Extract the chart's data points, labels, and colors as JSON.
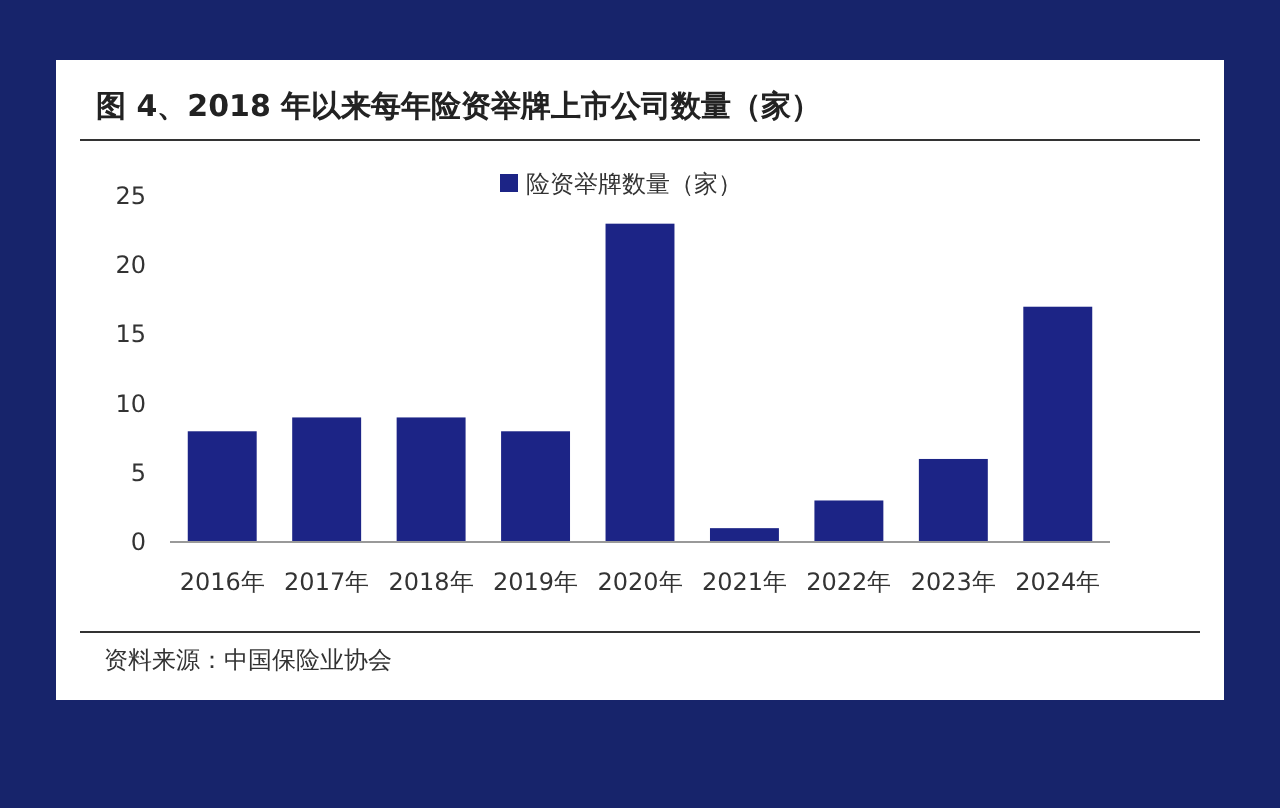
{
  "chart_data": {
    "type": "bar",
    "title": "图 4、2018 年以来每年险资举牌上市公司数量（家）",
    "categories": [
      "2016年",
      "2017年",
      "2018年",
      "2019年",
      "2020年",
      "2021年",
      "2022年",
      "2023年",
      "2024年"
    ],
    "series": [
      {
        "name": "险资举牌数量（家）",
        "color": "#1c2486",
        "values": [
          8,
          9,
          9,
          8,
          23,
          1,
          3,
          6,
          17
        ]
      }
    ],
    "ylim": [
      0,
      25
    ],
    "yticks": [
      0,
      5,
      10,
      15,
      20,
      25
    ],
    "legend": "top",
    "grid": false,
    "annotations": [
      "资料来源：中国保险业协会"
    ]
  }
}
